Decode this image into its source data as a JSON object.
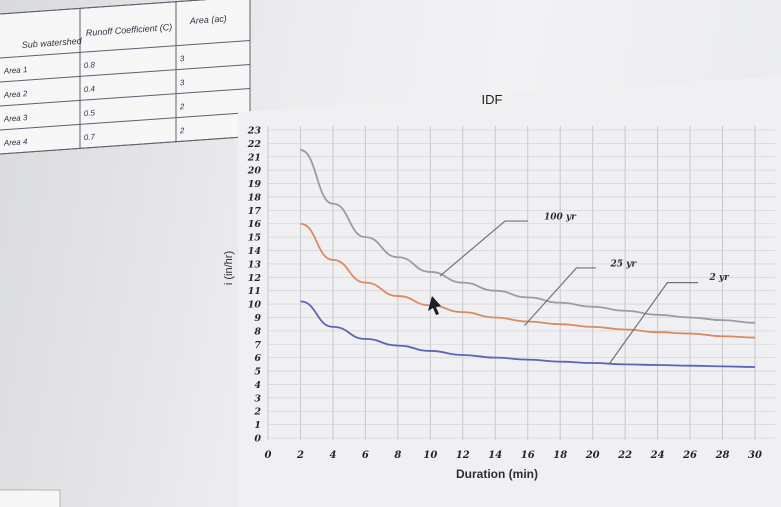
{
  "table": {
    "headers": [
      "Sub watershed",
      "Runoff Coefficient (C)",
      "Area (ac)"
    ],
    "rows": [
      [
        "Area 1",
        "0.8",
        "3"
      ],
      [
        "Area 2",
        "0.4",
        "3"
      ],
      [
        "Area 3",
        "0.5",
        "2"
      ],
      [
        "Area 4",
        "0.7",
        "2"
      ]
    ]
  },
  "chart_data": {
    "type": "line",
    "title": "IDF",
    "xlabel": "Duration (min)",
    "ylabel": "i (in/hr)",
    "xlim": [
      0,
      30
    ],
    "ylim": [
      0,
      23
    ],
    "x_ticks": [
      "0",
      "2",
      "4",
      "6",
      "8",
      "10",
      "12",
      "14",
      "16",
      "18",
      "20",
      "22",
      "24",
      "26",
      "28",
      "30"
    ],
    "y_ticks": [
      "0",
      "1",
      "2",
      "3",
      "4",
      "5",
      "6",
      "7",
      "8",
      "9",
      "10",
      "11",
      "12",
      "13",
      "14",
      "15",
      "16",
      "17",
      "18",
      "19",
      "20",
      "21",
      "22",
      "23"
    ],
    "grid": true,
    "x": [
      2,
      4,
      6,
      8,
      10,
      12,
      14,
      16,
      18,
      20,
      22,
      24,
      26,
      28,
      30
    ],
    "series": [
      {
        "name": "100 yr",
        "color": "#9a9c9e",
        "values": [
          21.5,
          17.5,
          15.0,
          13.5,
          12.4,
          11.6,
          11.0,
          10.5,
          10.1,
          9.8,
          9.5,
          9.2,
          9.0,
          8.8,
          8.6
        ]
      },
      {
        "name": "25 yr",
        "color": "#d98a62",
        "values": [
          16.0,
          13.3,
          11.6,
          10.6,
          9.9,
          9.4,
          9.0,
          8.7,
          8.5,
          8.3,
          8.1,
          7.9,
          7.8,
          7.6,
          7.5
        ]
      },
      {
        "name": "2 yr",
        "color": "#5b64b8",
        "values": [
          10.2,
          8.3,
          7.4,
          6.9,
          6.5,
          6.2,
          6.0,
          5.85,
          5.7,
          5.6,
          5.5,
          5.45,
          5.4,
          5.35,
          5.3
        ]
      }
    ],
    "annotations": [
      "100 yr",
      "25 yr",
      "2 yr"
    ]
  }
}
